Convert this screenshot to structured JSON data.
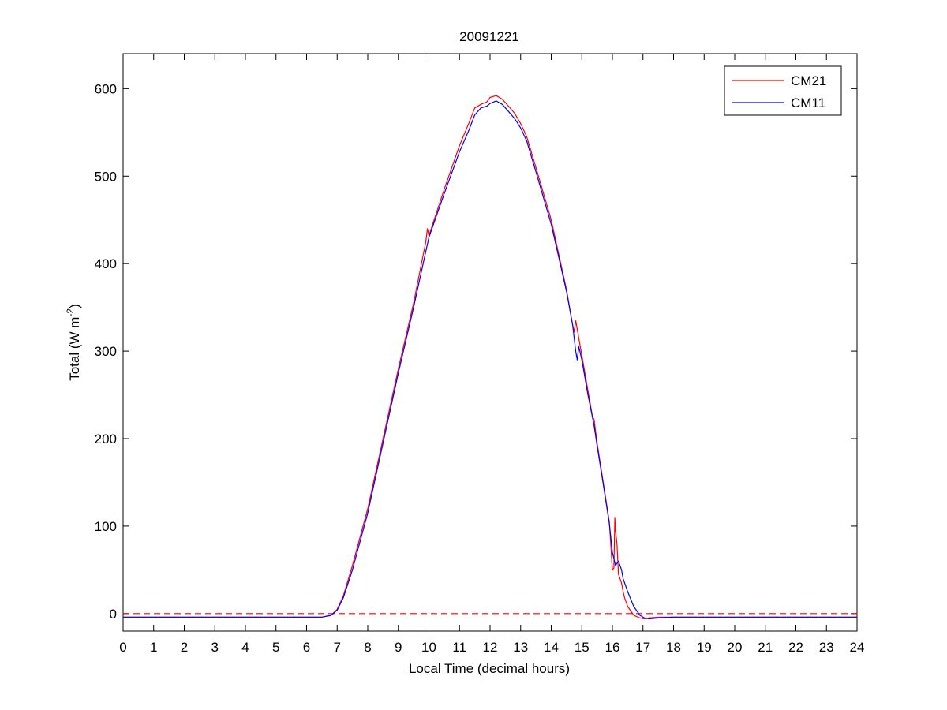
{
  "chart_data": {
    "type": "line",
    "title": "20091221",
    "xlabel": "Local Time (decimal hours)",
    "ylabel": {
      "main": "Total (W m",
      "sup": "-2",
      "close": ")"
    },
    "xlim": [
      0,
      24
    ],
    "ylim": [
      -20,
      640
    ],
    "xticks": [
      0,
      1,
      2,
      3,
      4,
      5,
      6,
      7,
      8,
      9,
      10,
      11,
      12,
      13,
      14,
      15,
      16,
      17,
      18,
      19,
      20,
      21,
      22,
      23,
      24
    ],
    "yticks": [
      0,
      100,
      200,
      300,
      400,
      500,
      600
    ],
    "grid": false,
    "legend_position": "top-right",
    "reference_line": {
      "y": 0,
      "style": "dashed",
      "color": "#ff0000"
    },
    "series": [
      {
        "name": "CM21",
        "color": "#ff0000",
        "x": [
          0,
          3,
          5,
          6,
          6.5,
          6.8,
          7,
          7.2,
          7.5,
          8,
          8.5,
          9,
          9.5,
          9.9,
          9.95,
          10,
          10.5,
          11,
          11.3,
          11.5,
          11.7,
          11.9,
          12,
          12.2,
          12.4,
          12.6,
          12.8,
          13,
          13.2,
          13.5,
          14,
          14.5,
          14.7,
          14.75,
          14.8,
          14.9,
          15,
          15.2,
          15.35,
          15.4,
          15.5,
          15.7,
          15.9,
          16,
          16.05,
          16.08,
          16.1,
          16.15,
          16.2,
          16.3,
          16.35,
          16.4,
          16.5,
          16.7,
          16.9,
          17.05,
          17.2,
          17.5,
          18,
          20,
          22,
          24
        ],
        "y": [
          -4,
          -4,
          -4,
          -4,
          -4,
          -2,
          5,
          20,
          55,
          120,
          200,
          280,
          355,
          425,
          440,
          432,
          485,
          535,
          560,
          578,
          582,
          585,
          590,
          592,
          588,
          580,
          572,
          560,
          545,
          510,
          450,
          370,
          330,
          322,
          335,
          315,
          295,
          255,
          225,
          222,
          195,
          150,
          105,
          50,
          52,
          110,
          95,
          80,
          45,
          35,
          25,
          18,
          8,
          -2,
          -5,
          -6,
          -5,
          -4,
          -4,
          -4,
          -4,
          -4
        ]
      },
      {
        "name": "CM11",
        "color": "#0000ff",
        "x": [
          0,
          3,
          5,
          6,
          6.5,
          6.8,
          7,
          7.2,
          7.5,
          8,
          8.5,
          9,
          9.5,
          10,
          10.5,
          11,
          11.3,
          11.5,
          11.7,
          11.9,
          12,
          12.2,
          12.4,
          12.6,
          12.8,
          13,
          13.2,
          13.5,
          14,
          14.5,
          14.7,
          14.8,
          14.85,
          14.9,
          15,
          15.2,
          15.4,
          15.5,
          15.7,
          15.9,
          16,
          16.1,
          16.2,
          16.3,
          16.35,
          16.4,
          16.5,
          16.7,
          16.9,
          17.05,
          17.2,
          17.5,
          18,
          20,
          22,
          24
        ],
        "y": [
          -4,
          -4,
          -4,
          -4,
          -4,
          -2,
          4,
          18,
          50,
          115,
          195,
          275,
          350,
          430,
          480,
          528,
          552,
          570,
          578,
          580,
          583,
          586,
          582,
          574,
          566,
          555,
          540,
          505,
          445,
          368,
          330,
          300,
          290,
          305,
          290,
          250,
          215,
          192,
          148,
          103,
          70,
          55,
          60,
          50,
          40,
          35,
          25,
          8,
          -2,
          -5,
          -6,
          -5,
          -4,
          -4,
          -4,
          -4
        ]
      }
    ]
  }
}
